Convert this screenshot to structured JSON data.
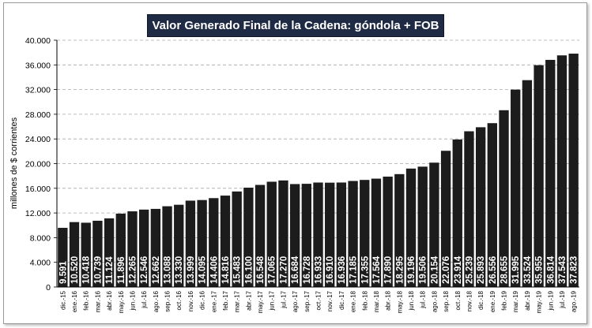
{
  "chart_data": {
    "type": "bar",
    "title": "Valor Generado Final de la Cadena: góndola + FOB",
    "ylabel": "millones de $ corrientes",
    "xlabel": "",
    "ylim": [
      0,
      40000
    ],
    "yticks": [
      "0",
      "4.000",
      "8.000",
      "12.000",
      "16.000",
      "20.000",
      "24.000",
      "28.000",
      "32.000",
      "36.000",
      "40.000"
    ],
    "grid": true,
    "bar_color": "#1c1c1c",
    "label_color": "#ffffff",
    "title_bg": "#1f2b44",
    "categories": [
      "dic.-15",
      "ene.-16",
      "feb.-16",
      "mar.-16",
      "abr.-16",
      "may.-16",
      "jun.-16",
      "jul.-16",
      "ago.-16",
      "sep.-16",
      "oct.-16",
      "nov.-16",
      "dic.-16",
      "ene.-17",
      "feb.-17",
      "mar.-17",
      "abr.-17",
      "may.-17",
      "jun.-17",
      "jul.-17",
      "ago.-17",
      "sep.-17",
      "oct.-17",
      "nov.-17",
      "dic.-17",
      "ene.-18",
      "feb.-18",
      "mar.-18",
      "abr.-18",
      "may.-18",
      "jun.-18",
      "jul.-18",
      "ago.-18",
      "sep.-18",
      "oct.-18",
      "nov.-18",
      "dic.-18",
      "ene.-19",
      "feb.-19",
      "mar.-19",
      "abr.-19",
      "may.-19",
      "jun.-19",
      "jul.-19",
      "ago.-19"
    ],
    "values": [
      9591,
      10520,
      10418,
      10739,
      11124,
      11896,
      12265,
      12546,
      12662,
      13088,
      13330,
      13999,
      14095,
      14406,
      14816,
      15483,
      16100,
      16548,
      17065,
      17270,
      16684,
      16728,
      16933,
      16910,
      16936,
      17185,
      17355,
      17564,
      17890,
      18295,
      19196,
      19506,
      20154,
      22076,
      23914,
      25239,
      25893,
      26556,
      28655,
      31995,
      33524,
      35955,
      36814,
      37543,
      37823
    ],
    "labels": [
      "9.591",
      "10.520",
      "10.418",
      "10.739",
      "11.124",
      "11.896",
      "12.265",
      "12.546",
      "12.662",
      "13.088",
      "13.330",
      "13.999",
      "14.095",
      "14.406",
      "14.816",
      "15.483",
      "16.100",
      "16.548",
      "17.065",
      "17.270",
      "16.684",
      "16.728",
      "16.933",
      "16.910",
      "16.936",
      "17.185",
      "17.355",
      "17.564",
      "17.890",
      "18.295",
      "19.196",
      "19.506",
      "20.154",
      "22.076",
      "23.914",
      "25.239",
      "25.893",
      "26.556",
      "28.655",
      "31.995",
      "33.524",
      "35.955",
      "36.814",
      "37.543",
      "37.823"
    ]
  }
}
